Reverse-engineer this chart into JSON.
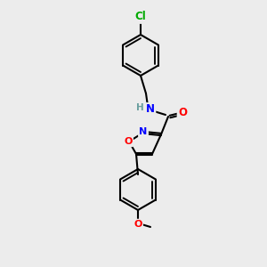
{
  "bg_color": "#ececec",
  "bond_color": "#000000",
  "line_width": 1.5,
  "atom_colors": {
    "C": "#000000",
    "N": "#0000ff",
    "O": "#ff0000",
    "Cl": "#00aa00",
    "H": "#6a9f9f"
  },
  "font_size": 8.5,
  "font_size_small": 7.5
}
